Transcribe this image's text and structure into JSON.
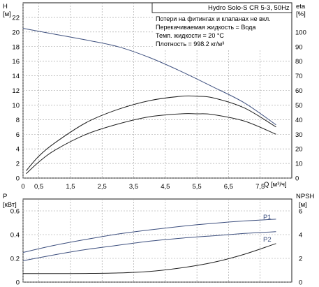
{
  "title": "Hydro Solo-S CR 5-3, 50Hz",
  "notes": [
    "Потери на фитингах и клапанах не вкл.",
    "Перекачиваемая жидкость = Вода",
    "Темп. жидкости = 20 °C",
    "Плотность = 998.2 кг/м³"
  ],
  "colors": {
    "curve_blue": "#3d4f7e",
    "curve_dark": "#1e1e1e",
    "grid": "#9a9a9a"
  },
  "chart_data": [
    {
      "type": "line",
      "name": "H-eta",
      "left_axis": {
        "label_top": "H",
        "unit": "[м]",
        "ylim": [
          0,
          24
        ],
        "ticks": [
          0,
          2,
          4,
          6,
          8,
          10,
          12,
          14,
          16,
          18,
          20,
          22
        ]
      },
      "right_axis": {
        "label_top": "eta",
        "unit": "[%]",
        "ylim": [
          0,
          120
        ],
        "ticks": [
          0,
          10,
          20,
          30,
          40,
          50,
          60,
          70,
          80,
          90,
          100
        ]
      },
      "x_axis": {
        "label": "Q [м³/ч]",
        "xlim": [
          0,
          8.5
        ],
        "ticks": [
          0,
          0.5,
          1.5,
          2.5,
          3.5,
          4.5,
          5.5,
          6.5,
          7.5
        ]
      },
      "series": [
        {
          "label": "H",
          "axis": "left",
          "color": "#3d4f7e",
          "x": [
            0,
            1,
            2,
            3,
            4,
            5,
            6,
            7,
            8
          ],
          "y": [
            20.5,
            19.7,
            18.9,
            18.0,
            16.5,
            14.6,
            12.5,
            10.3,
            7.3
          ]
        },
        {
          "label": "eta_upper",
          "axis": "right",
          "color": "#1e1e1e",
          "x": [
            0.1,
            0.5,
            1,
            2,
            3,
            4,
            5,
            5.5,
            6,
            7,
            8
          ],
          "y": [
            5,
            15,
            24,
            38,
            47,
            53,
            56,
            56,
            55,
            48,
            35
          ]
        },
        {
          "label": "eta_lower",
          "axis": "right",
          "color": "#1e1e1e",
          "x": [
            0.1,
            0.5,
            1,
            2,
            3,
            4,
            5,
            5.5,
            6,
            7,
            8
          ],
          "y": [
            3,
            11,
            19,
            30,
            37,
            42,
            44,
            44,
            43.5,
            39,
            30
          ]
        }
      ]
    },
    {
      "type": "line",
      "name": "P-NPSH",
      "left_axis": {
        "label_top": "P",
        "unit": "[кВт]",
        "ylim": [
          0,
          0.7
        ],
        "ticks": [
          0,
          0.2,
          0.4,
          0.6
        ]
      },
      "right_axis": {
        "label_top": "NPSH",
        "unit": "[м]",
        "ylim": [
          0,
          7
        ],
        "ticks": [
          0,
          2,
          4,
          6
        ]
      },
      "x_axis": {
        "xlim": [
          0,
          8.5
        ]
      },
      "series": [
        {
          "label": "P1",
          "axis": "left",
          "color": "#3d4f7e",
          "x": [
            0,
            1,
            2,
            3,
            4,
            5,
            6,
            7,
            8
          ],
          "y": [
            0.25,
            0.31,
            0.36,
            0.405,
            0.44,
            0.47,
            0.495,
            0.515,
            0.53
          ]
        },
        {
          "label": "P2",
          "axis": "left",
          "color": "#3d4f7e",
          "x": [
            0,
            1,
            2,
            3,
            4,
            5,
            6,
            7,
            8
          ],
          "y": [
            0.18,
            0.23,
            0.275,
            0.31,
            0.345,
            0.37,
            0.39,
            0.41,
            0.425
          ]
        },
        {
          "label": "NPSH",
          "axis": "right",
          "color": "#1e1e1e",
          "x": [
            0,
            1,
            2,
            3,
            4,
            5,
            6,
            7,
            8
          ],
          "y": [
            0.72,
            0.72,
            0.73,
            0.77,
            0.9,
            1.2,
            1.65,
            2.35,
            3.25
          ]
        }
      ]
    }
  ]
}
